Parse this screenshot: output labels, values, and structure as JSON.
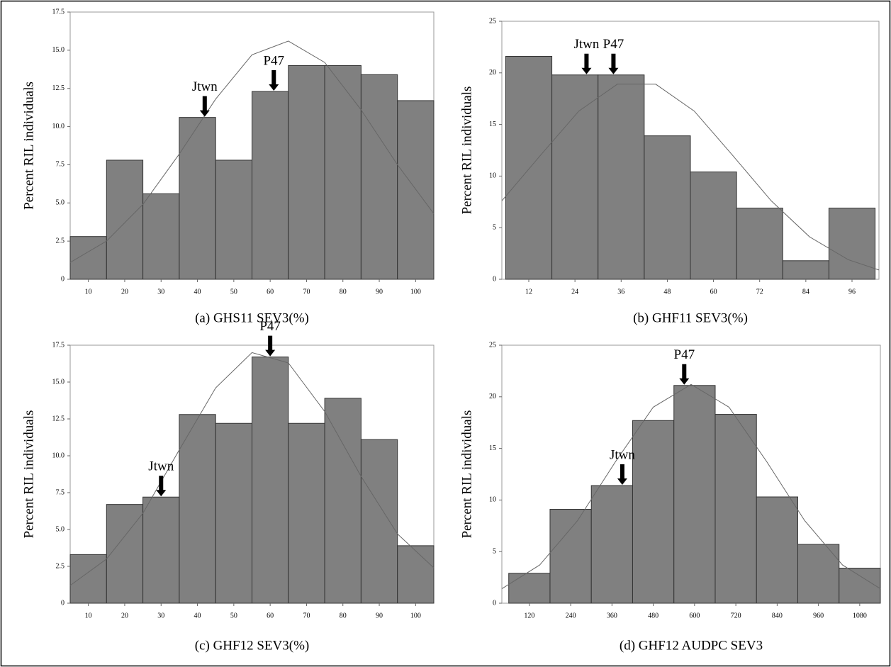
{
  "chart_data": [
    {
      "type": "histogram",
      "xlabel": "(a) GHS11 SEV3(%)",
      "ylabel": "Percent RIL individuals",
      "color": "#808080",
      "bins": [
        5,
        15,
        25,
        35,
        45,
        55,
        65,
        75,
        85,
        95,
        105
      ],
      "values": [
        2.8,
        7.8,
        5.6,
        10.6,
        7.8,
        12.3,
        14.0,
        14.0,
        13.4,
        11.7
      ],
      "xlim": [
        5,
        105
      ],
      "ylim": [
        0,
        17.5
      ],
      "xticks": [
        10,
        20,
        30,
        40,
        50,
        60,
        70,
        80,
        90,
        100
      ],
      "yticks": [
        0,
        2.5,
        {
          "value": 5,
          "label": "5.0"
        },
        7.5,
        {
          "value": 10,
          "label": "10.0"
        },
        12.5,
        {
          "value": 15,
          "label": "15.0"
        },
        17.5
      ],
      "curve": {
        "x": [
          5,
          15,
          25,
          35,
          45,
          55,
          65,
          75,
          85,
          95,
          105
        ],
        "y": [
          1.1,
          2.5,
          4.9,
          8.2,
          11.8,
          14.7,
          15.6,
          14.2,
          11.1,
          7.5,
          4.3
        ]
      },
      "annotations": [
        {
          "text": "Jtwn",
          "x": 42,
          "y": 10.6
        },
        {
          "text": "P47",
          "x": 61,
          "y": 12.3
        }
      ]
    },
    {
      "type": "histogram",
      "xlabel": "(b) GHF11 SEV3(%)",
      "ylabel": "Percent RIL individuals",
      "color": "#808080",
      "bins": [
        6,
        18,
        30,
        42,
        54,
        66,
        78,
        90,
        102
      ],
      "values": [
        21.6,
        19.8,
        19.8,
        13.9,
        10.4,
        6.9,
        1.8,
        6.9
      ],
      "xlim": [
        5,
        103
      ],
      "ylim": [
        0,
        25
      ],
      "xticks": [
        12,
        24,
        36,
        48,
        60,
        72,
        84,
        96
      ],
      "yticks": [
        0,
        5,
        10,
        15,
        20,
        25
      ],
      "curve": {
        "x": [
          5,
          15,
          25,
          35,
          45,
          55,
          65,
          75,
          85,
          95,
          103
        ],
        "y": [
          7.6,
          12.0,
          16.3,
          18.9,
          18.9,
          16.3,
          12.0,
          7.6,
          4.1,
          1.9,
          0.9
        ]
      },
      "annotations": [
        {
          "text": "Jtwn",
          "x": 27,
          "y": 19.8
        },
        {
          "text": "P47",
          "x": 34,
          "y": 19.8
        }
      ]
    },
    {
      "type": "histogram",
      "xlabel": "(c) GHF12 SEV3(%)",
      "ylabel": "Percent RIL individuals",
      "color": "#808080",
      "bins": [
        5,
        15,
        25,
        35,
        45,
        55,
        65,
        75,
        85,
        95,
        105
      ],
      "values": [
        3.3,
        6.7,
        7.2,
        12.8,
        12.2,
        16.7,
        12.2,
        13.9,
        11.1,
        3.9
      ],
      "xlim": [
        5,
        105
      ],
      "ylim": [
        0,
        17.5
      ],
      "xticks": [
        10,
        20,
        30,
        40,
        50,
        60,
        70,
        80,
        90,
        100
      ],
      "yticks": [
        0,
        2.5,
        {
          "value": 5,
          "label": "5.0"
        },
        7.5,
        {
          "value": 10,
          "label": "10.0"
        },
        12.5,
        {
          "value": 15,
          "label": "15.0"
        },
        17.5
      ],
      "curve": {
        "x": [
          5,
          15,
          25,
          35,
          45,
          55,
          65,
          75,
          85,
          95,
          105
        ],
        "y": [
          1.2,
          3.0,
          6.1,
          10.4,
          14.6,
          17.0,
          16.3,
          13.0,
          8.6,
          4.7,
          2.4
        ]
      },
      "annotations": [
        {
          "text": "Jtwn",
          "x": 30,
          "y": 7.2
        },
        {
          "text": "P47",
          "x": 60,
          "y": 16.7
        }
      ]
    },
    {
      "type": "histogram",
      "xlabel": "(d) GHF12 AUDPC SEV3",
      "ylabel": "Percent RIL individuals",
      "color": "#808080",
      "bins": [
        60,
        180,
        300,
        420,
        540,
        660,
        780,
        900,
        1020,
        1140
      ],
      "values": [
        2.9,
        9.1,
        11.4,
        17.7,
        21.1,
        18.3,
        10.3,
        5.7,
        3.4
      ],
      "xlim": [
        40,
        1140
      ],
      "ylim": [
        0,
        25
      ],
      "xticks": [
        120,
        240,
        360,
        480,
        600,
        720,
        840,
        960,
        1080
      ],
      "yticks": [
        0,
        5,
        10,
        15,
        20,
        25
      ],
      "curve": {
        "x": [
          40,
          150,
          260,
          370,
          480,
          590,
          700,
          810,
          920,
          1030,
          1140
        ],
        "y": [
          1.4,
          3.7,
          8.0,
          13.7,
          19.0,
          21.2,
          19.0,
          13.7,
          8.0,
          3.7,
          1.4
        ]
      },
      "annotations": [
        {
          "text": "Jtwn",
          "x": 390,
          "y": 11.4
        },
        {
          "text": "P47",
          "x": 570,
          "y": 21.1
        }
      ]
    }
  ]
}
